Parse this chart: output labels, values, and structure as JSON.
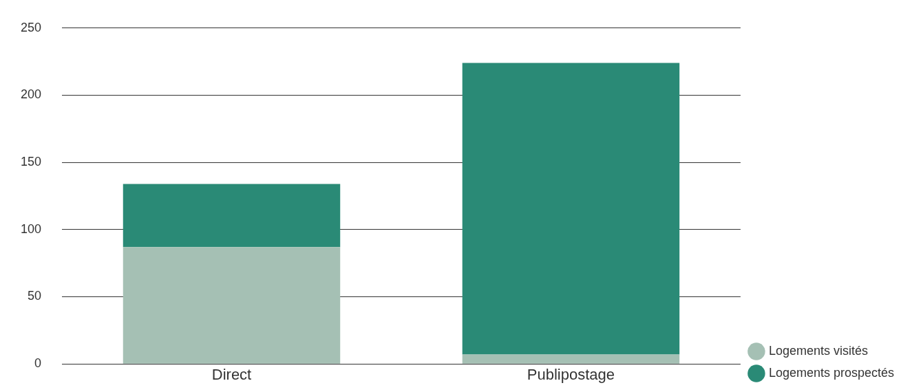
{
  "chart_data": {
    "type": "bar",
    "stacked": true,
    "categories": [
      "Direct",
      "Publipostage"
    ],
    "series": [
      {
        "name": "Logements visités",
        "color": "#a5c0b4",
        "values": [
          87,
          7
        ]
      },
      {
        "name": "Logements prospectés",
        "color": "#2a8a76",
        "values": [
          47,
          217
        ]
      }
    ],
    "ylim": [
      0,
      250
    ],
    "yticks": [
      0,
      50,
      100,
      150,
      200,
      250
    ],
    "grid": "y",
    "legend": "bottom right"
  }
}
